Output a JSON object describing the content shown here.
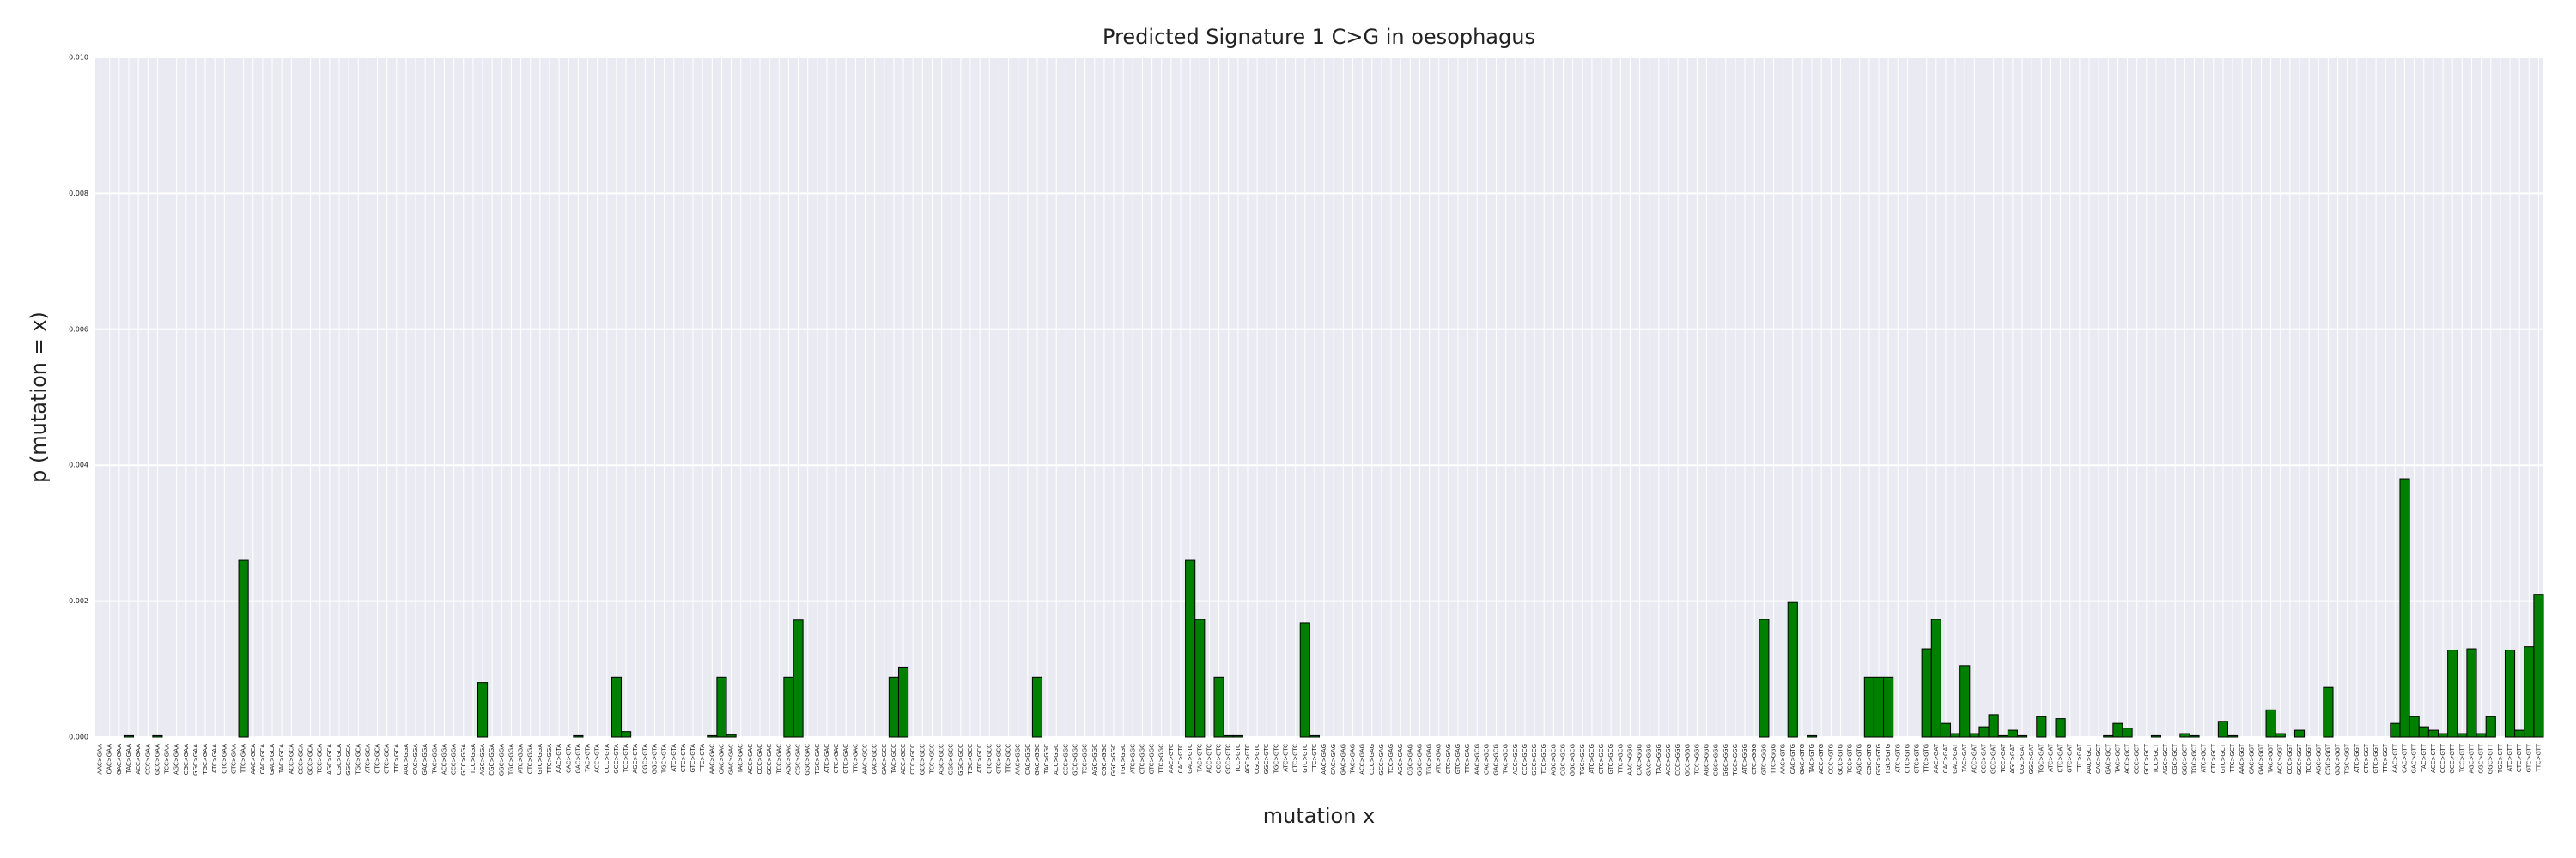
{
  "chart_data": {
    "type": "bar",
    "title": "Predicted Signature 1 C>G in oesophagus",
    "x_label": "mutation x",
    "y_label": "p (mutation = x)",
    "color": "#008000",
    "edge_color": "#000000",
    "grid": true,
    "categories": [
      "AAC>GAA",
      "CAC>GAA",
      "GAC>GAA",
      "TAC>GAA",
      "ACC>GAA",
      "CCC>GAA",
      "GCC>GAA",
      "TCC>GAA",
      "AGC>GAA",
      "CGC>GAA",
      "GGC>GAA",
      "TGC>GAA",
      "ATC>GAA",
      "CTC>GAA",
      "GTC>GAA",
      "TTC>GAA",
      "AAC>GCA",
      "CAC>GCA",
      "GAC>GCA",
      "TAC>GCA",
      "ACC>GCA",
      "CCC>GCA",
      "GCC>GCA",
      "TCC>GCA",
      "AGC>GCA",
      "CGC>GCA",
      "GGC>GCA",
      "TGC>GCA",
      "ATC>GCA",
      "CTC>GCA",
      "GTC>GCA",
      "TTC>GCA",
      "AAC>GGA",
      "CAC>GGA",
      "GAC>GGA",
      "TAC>GGA",
      "ACC>GGA",
      "CCC>GGA",
      "GCC>GGA",
      "TCC>GGA",
      "AGC>GGA",
      "CGC>GGA",
      "GGC>GGA",
      "TGC>GGA",
      "ATC>GGA",
      "CTC>GGA",
      "GTC>GGA",
      "TTC>GGA",
      "AAC>GTA",
      "CAC>GTA",
      "GAC>GTA",
      "TAC>GTA",
      "ACC>GTA",
      "CCC>GTA",
      "GCC>GTA",
      "TCC>GTA",
      "AGC>GTA",
      "CGC>GTA",
      "GGC>GTA",
      "TGC>GTA",
      "ATC>GTA",
      "CTC>GTA",
      "GTC>GTA",
      "TTC>GTA",
      "AAC>GAC",
      "CAC>GAC",
      "GAC>GAC",
      "TAC>GAC",
      "ACC>GAC",
      "CCC>GAC",
      "GCC>GAC",
      "TCC>GAC",
      "AGC>GAC",
      "CGC>GAC",
      "GGC>GAC",
      "TGC>GAC",
      "ATC>GAC",
      "CTC>GAC",
      "GTC>GAC",
      "TTC>GAC",
      "AAC>GCC",
      "CAC>GCC",
      "GAC>GCC",
      "TAC>GCC",
      "ACC>GCC",
      "CCC>GCC",
      "GCC>GCC",
      "TCC>GCC",
      "AGC>GCC",
      "CGC>GCC",
      "GGC>GCC",
      "TGC>GCC",
      "ATC>GCC",
      "CTC>GCC",
      "GTC>GCC",
      "TTC>GCC",
      "AAC>GGC",
      "CAC>GGC",
      "GAC>GGC",
      "TAC>GGC",
      "ACC>GGC",
      "CCC>GGC",
      "GCC>GGC",
      "TCC>GGC",
      "AGC>GGC",
      "CGC>GGC",
      "GGC>GGC",
      "TGC>GGC",
      "ATC>GGC",
      "CTC>GGC",
      "GTC>GGC",
      "TTC>GGC",
      "AAC>GTC",
      "CAC>GTC",
      "GAC>GTC",
      "TAC>GTC",
      "ACC>GTC",
      "CCC>GTC",
      "GCC>GTC",
      "TCC>GTC",
      "AGC>GTC",
      "CGC>GTC",
      "GGC>GTC",
      "TGC>GTC",
      "ATC>GTC",
      "CTC>GTC",
      "GTC>GTC",
      "TTC>GTC",
      "AAC>GAG",
      "CAC>GAG",
      "GAC>GAG",
      "TAC>GAG",
      "ACC>GAG",
      "CCC>GAG",
      "GCC>GAG",
      "TCC>GAG",
      "AGC>GAG",
      "CGC>GAG",
      "GGC>GAG",
      "TGC>GAG",
      "ATC>GAG",
      "CTC>GAG",
      "GTC>GAG",
      "TTC>GAG",
      "AAC>GCG",
      "CAC>GCG",
      "GAC>GCG",
      "TAC>GCG",
      "ACC>GCG",
      "CCC>GCG",
      "GCC>GCG",
      "TCC>GCG",
      "AGC>GCG",
      "CGC>GCG",
      "GGC>GCG",
      "TGC>GCG",
      "ATC>GCG",
      "CTC>GCG",
      "GTC>GCG",
      "TTC>GCG",
      "AAC>GGG",
      "CAC>GGG",
      "GAC>GGG",
      "TAC>GGG",
      "ACC>GGG",
      "CCC>GGG",
      "GCC>GGG",
      "TCC>GGG",
      "AGC>GGG",
      "CGC>GGG",
      "GGC>GGG",
      "TGC>GGG",
      "ATC>GGG",
      "CTC>GGG",
      "GTC>GGG",
      "TTC>GGG",
      "AAC>GTG",
      "CAC>GTG",
      "GAC>GTG",
      "TAC>GTG",
      "ACC>GTG",
      "CCC>GTG",
      "GCC>GTG",
      "TCC>GTG",
      "AGC>GTG",
      "CGC>GTG",
      "GGC>GTG",
      "TGC>GTG",
      "ATC>GTG",
      "CTC>GTG",
      "GTC>GTG",
      "TTC>GTG",
      "AAC>GAT",
      "CAC>GAT",
      "GAC>GAT",
      "TAC>GAT",
      "ACC>GAT",
      "CCC>GAT",
      "GCC>GAT",
      "TCC>GAT",
      "AGC>GAT",
      "CGC>GAT",
      "GGC>GAT",
      "TGC>GAT",
      "ATC>GAT",
      "CTC>GAT",
      "GTC>GAT",
      "TTC>GAT",
      "AAC>GCT",
      "CAC>GCT",
      "GAC>GCT",
      "TAC>GCT",
      "ACC>GCT",
      "CCC>GCT",
      "GCC>GCT",
      "TCC>GCT",
      "AGC>GCT",
      "CGC>GCT",
      "GGC>GCT",
      "TGC>GCT",
      "ATC>GCT",
      "CTC>GCT",
      "GTC>GCT",
      "TTC>GCT",
      "AAC>GGT",
      "CAC>GGT",
      "GAC>GGT",
      "TAC>GGT",
      "ACC>GGT",
      "CCC>GGT",
      "GCC>GGT",
      "TCC>GGT",
      "AGC>GGT",
      "CGC>GGT",
      "GGC>GGT",
      "TGC>GGT",
      "ATC>GGT",
      "CTC>GGT",
      "GTC>GGT",
      "TTC>GGT",
      "AAC>GTT",
      "CAC>GTT",
      "GAC>GTT",
      "TAC>GTT",
      "ACC>GTT",
      "CCC>GTT",
      "GCC>GTT",
      "TCC>GTT",
      "AGC>GTT",
      "CGC>GTT",
      "GGC>GTT",
      "TGC>GTT",
      "ATC>GTT",
      "CTC>GTT",
      "GTC>GTT",
      "TTC>GTT"
    ],
    "values": [
      0,
      0,
      0,
      2e-05,
      0,
      0,
      2e-05,
      0,
      0,
      0,
      0,
      0,
      0,
      0,
      0,
      0.0026,
      0,
      0,
      0,
      0,
      0,
      0,
      0,
      0,
      0,
      0,
      0,
      0,
      0,
      0,
      0,
      0,
      0,
      0,
      0,
      0,
      0,
      0,
      0,
      0,
      0.0008,
      0,
      0,
      0,
      0,
      0,
      0,
      0,
      0,
      0,
      2e-05,
      0,
      0,
      0,
      0.00088,
      8e-05,
      0,
      0,
      0,
      0,
      0,
      0,
      0,
      0,
      2e-05,
      0.00088,
      3e-05,
      0,
      0,
      0,
      0,
      0,
      0.00088,
      0.00172,
      0,
      0,
      0,
      0,
      0,
      0,
      0,
      0,
      0,
      0.00088,
      0.00103,
      0,
      0,
      0,
      0,
      0,
      0,
      0,
      0,
      0,
      0,
      0,
      0,
      0,
      0.00088,
      0,
      0,
      0,
      0,
      0,
      0,
      0,
      0,
      0,
      0,
      0,
      0,
      0,
      0,
      0,
      0.0026,
      0.00173,
      0,
      0.00088,
      2e-05,
      2e-05,
      0,
      0,
      0,
      0,
      0,
      0,
      0.00168,
      2e-05,
      0,
      0,
      0,
      0,
      0,
      0,
      0,
      0,
      0,
      0,
      0,
      0,
      0,
      0,
      0,
      0,
      0,
      0,
      0,
      0,
      0,
      0,
      0,
      0,
      0,
      0,
      0,
      0,
      0,
      0,
      0,
      0,
      0,
      0,
      0,
      0,
      0,
      0,
      0,
      0,
      0,
      0,
      0,
      0,
      0,
      0,
      0.00173,
      0,
      0,
      0.00198,
      0,
      2e-05,
      0,
      0,
      0,
      0,
      0,
      0.00088,
      0.00088,
      0.00088,
      0,
      0,
      0,
      0.0013,
      0.00173,
      0.0002,
      5e-05,
      0.00105,
      5e-05,
      0.00015,
      0.00033,
      2e-05,
      0.0001,
      2e-05,
      0,
      0.0003,
      0,
      0.00027,
      0,
      0,
      0,
      0,
      2e-05,
      0.0002,
      0.00013,
      0,
      0,
      2e-05,
      0,
      0,
      5e-05,
      2e-05,
      0,
      0,
      0.00023,
      2e-05,
      0,
      0,
      0,
      0.0004,
      5e-05,
      0,
      0.0001,
      0,
      0,
      0.00073,
      0,
      0,
      0,
      0,
      0,
      0,
      0.0002,
      0.0038,
      0.0003,
      0.00015,
      0.0001,
      5e-05,
      0.00128,
      5e-05,
      0.0013,
      5e-05,
      0.0003,
      0,
      0.00128,
      0.0001,
      0.00133,
      0.0021
    ],
    "ylim": [
      0,
      0.01
    ],
    "yticks": [
      {
        "value": 0,
        "label": "0.000"
      },
      {
        "value": 0.002,
        "label": "0.002"
      },
      {
        "value": 0.004,
        "label": "0.004"
      },
      {
        "value": 0.006,
        "label": "0.006"
      },
      {
        "value": 0.008,
        "label": "0.008"
      },
      {
        "value": 0.01,
        "label": "0.010"
      }
    ]
  }
}
